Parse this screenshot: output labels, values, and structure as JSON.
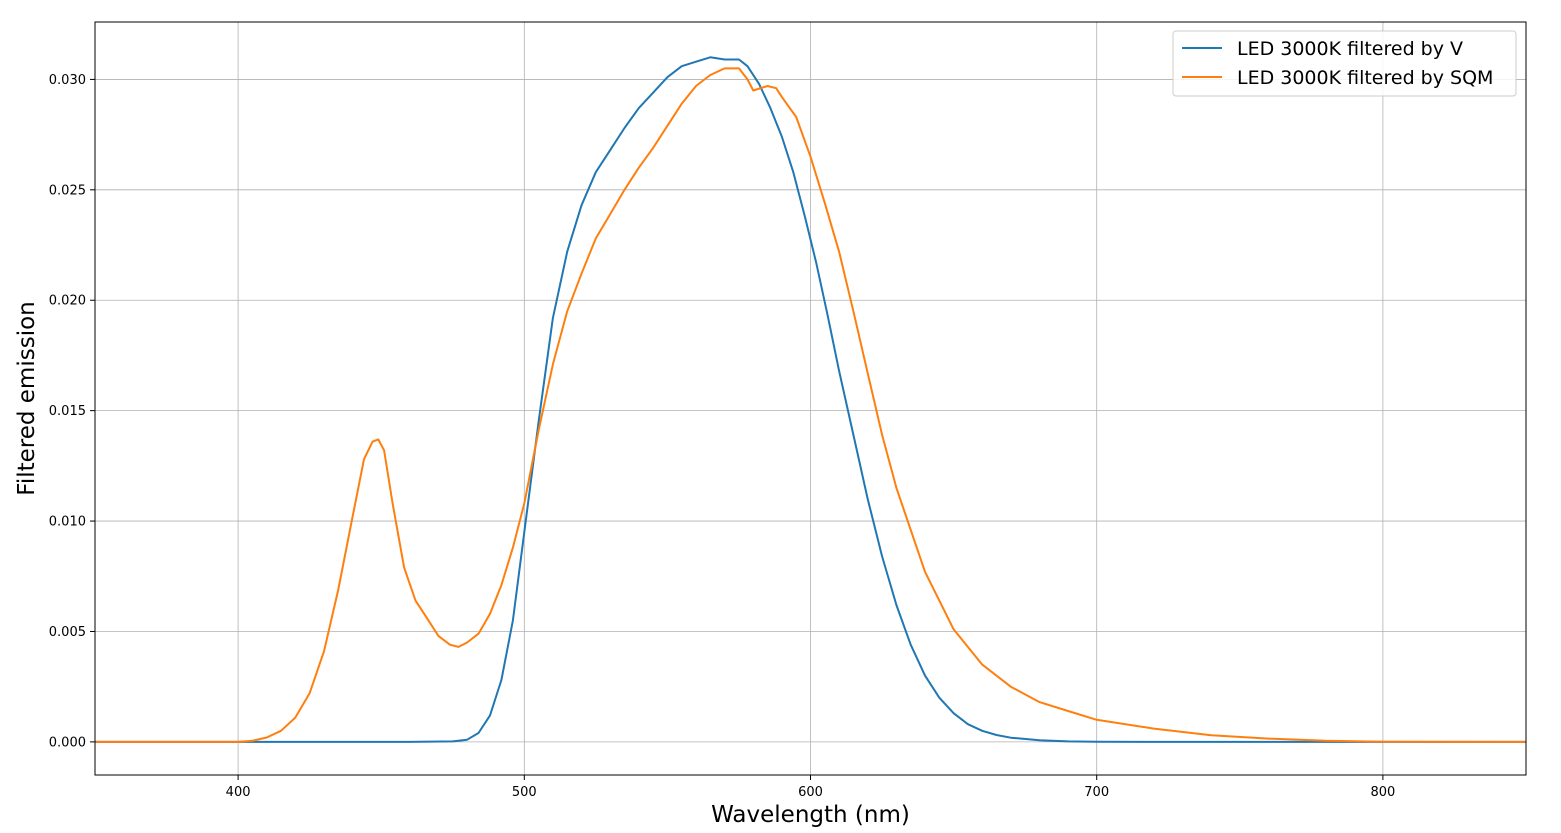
{
  "chart_data": {
    "type": "line",
    "xlabel": "Wavelength (nm)",
    "ylabel": "Filtered emission",
    "xlim": [
      350,
      850
    ],
    "ylim": [
      -0.0015,
      0.0326
    ],
    "xticks": [
      400,
      500,
      600,
      700,
      800
    ],
    "yticks": [
      0.0,
      0.005,
      0.01,
      0.015,
      0.02,
      0.025,
      0.03
    ],
    "ytick_labels": [
      "0.000",
      "0.005",
      "0.010",
      "0.015",
      "0.020",
      "0.025",
      "0.030"
    ],
    "grid": true,
    "legend_position": "top-right",
    "series": [
      {
        "name": "LED 3000K filtered by V",
        "color": "#1f77b4",
        "x": [
          350,
          400,
          460,
          475,
          480,
          484,
          488,
          492,
          496,
          500,
          505,
          510,
          515,
          520,
          525,
          530,
          535,
          540,
          545,
          550,
          555,
          560,
          565,
          570,
          575,
          578,
          582,
          586,
          590,
          594,
          598,
          602,
          606,
          610,
          615,
          620,
          625,
          630,
          635,
          640,
          645,
          650,
          655,
          660,
          665,
          670,
          680,
          690,
          700,
          720,
          850
        ],
        "y": [
          0,
          0,
          0,
          2e-05,
          0.0001,
          0.0004,
          0.0012,
          0.0028,
          0.0055,
          0.0095,
          0.0145,
          0.0192,
          0.0222,
          0.0243,
          0.0258,
          0.0268,
          0.0278,
          0.0287,
          0.0294,
          0.0301,
          0.0306,
          0.0308,
          0.031,
          0.0309,
          0.0309,
          0.0306,
          0.0298,
          0.0287,
          0.0274,
          0.0258,
          0.0238,
          0.0217,
          0.0193,
          0.0168,
          0.0139,
          0.011,
          0.0084,
          0.0062,
          0.0044,
          0.003,
          0.002,
          0.0013,
          0.0008,
          0.0005,
          0.00031,
          0.00019,
          7e-05,
          2e-05,
          1e-05,
          0,
          0
        ]
      },
      {
        "name": "LED 3000K filtered by SQM",
        "color": "#ff7f0e",
        "x": [
          350,
          400,
          405,
          410,
          415,
          420,
          425,
          430,
          435,
          440,
          444,
          447,
          449,
          451,
          454,
          458,
          462,
          466,
          470,
          474,
          477,
          480,
          484,
          488,
          492,
          496,
          500,
          505,
          510,
          515,
          520,
          525,
          530,
          535,
          540,
          545,
          550,
          555,
          560,
          565,
          570,
          575,
          578,
          580,
          585,
          588,
          590,
          595,
          600,
          605,
          610,
          615,
          620,
          625,
          630,
          640,
          650,
          660,
          670,
          680,
          690,
          700,
          720,
          740,
          760,
          780,
          800,
          850
        ],
        "y": [
          0,
          0,
          5e-05,
          0.0002,
          0.0005,
          0.0011,
          0.0022,
          0.0041,
          0.0069,
          0.0102,
          0.0128,
          0.0136,
          0.0137,
          0.0132,
          0.0108,
          0.0079,
          0.0064,
          0.0056,
          0.0048,
          0.0044,
          0.0043,
          0.0045,
          0.0049,
          0.0058,
          0.0071,
          0.0088,
          0.0108,
          0.0141,
          0.0171,
          0.0195,
          0.0212,
          0.0228,
          0.0239,
          0.025,
          0.026,
          0.0269,
          0.0279,
          0.0289,
          0.0297,
          0.0302,
          0.0305,
          0.0305,
          0.03,
          0.0295,
          0.0297,
          0.0296,
          0.0292,
          0.0283,
          0.0265,
          0.0244,
          0.0222,
          0.0195,
          0.0167,
          0.0139,
          0.0115,
          0.0077,
          0.0051,
          0.0035,
          0.0025,
          0.0018,
          0.0014,
          0.001,
          0.0006,
          0.0003,
          0.00015,
          5e-05,
          1e-05,
          0
        ]
      }
    ]
  }
}
